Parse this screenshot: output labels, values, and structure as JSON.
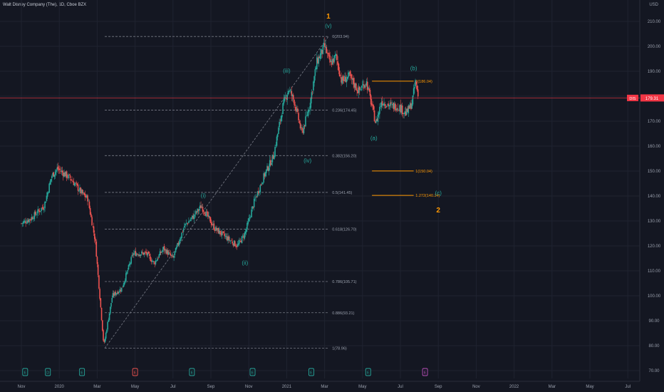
{
  "header": {
    "title": "Walt Disney Company (The), 1D, Cboe BZX",
    "currency": "USD"
  },
  "price_tag": {
    "symbol": "DIS",
    "value": "179.31"
  },
  "chart_data": {
    "type": "candlestick",
    "ylim": [
      70,
      210
    ],
    "y_ticks": [
      "70.00",
      "80.00",
      "90.00",
      "100.00",
      "110.00",
      "120.00",
      "130.00",
      "140.00",
      "150.00",
      "160.00",
      "170.00",
      "180.00",
      "190.00",
      "200.00",
      "210.00"
    ],
    "x_ticks": [
      "Nov",
      "2020",
      "Mar",
      "May",
      "Jul",
      "Sep",
      "Nov",
      "2021",
      "Mar",
      "May",
      "Jul",
      "Sep",
      "Nov",
      "2022",
      "Mar",
      "May",
      "Jul"
    ],
    "x_tick_months": [
      0,
      2,
      4,
      6,
      8,
      10,
      12,
      14,
      16,
      18,
      20,
      22,
      24,
      26,
      28,
      30,
      32
    ],
    "current_price": 179.31,
    "price_anchors": [
      {
        "m": 0.0,
        "p": 129
      },
      {
        "m": 0.5,
        "p": 131
      },
      {
        "m": 1.2,
        "p": 136
      },
      {
        "m": 1.6,
        "p": 148
      },
      {
        "m": 1.9,
        "p": 151
      },
      {
        "m": 2.6,
        "p": 147
      },
      {
        "m": 3.2,
        "p": 141
      },
      {
        "m": 3.5,
        "p": 139
      },
      {
        "m": 3.9,
        "p": 122
      },
      {
        "m": 4.35,
        "p": 80
      },
      {
        "m": 4.8,
        "p": 100
      },
      {
        "m": 5.3,
        "p": 103
      },
      {
        "m": 5.9,
        "p": 117
      },
      {
        "m": 6.6,
        "p": 117
      },
      {
        "m": 7.0,
        "p": 113
      },
      {
        "m": 7.5,
        "p": 119
      },
      {
        "m": 8.0,
        "p": 115
      },
      {
        "m": 8.6,
        "p": 128
      },
      {
        "m": 9.1,
        "p": 132
      },
      {
        "m": 9.5,
        "p": 136
      },
      {
        "m": 10.2,
        "p": 127
      },
      {
        "m": 10.7,
        "p": 124
      },
      {
        "m": 11.4,
        "p": 120
      },
      {
        "m": 11.8,
        "p": 125
      },
      {
        "m": 12.3,
        "p": 138
      },
      {
        "m": 12.8,
        "p": 148
      },
      {
        "m": 13.3,
        "p": 156
      },
      {
        "m": 13.8,
        "p": 176
      },
      {
        "m": 14.1,
        "p": 183
      },
      {
        "m": 14.4,
        "p": 178
      },
      {
        "m": 14.8,
        "p": 165
      },
      {
        "m": 15.2,
        "p": 176
      },
      {
        "m": 15.6,
        "p": 194
      },
      {
        "m": 16.0,
        "p": 200
      },
      {
        "m": 16.3,
        "p": 193
      },
      {
        "m": 16.6,
        "p": 196
      },
      {
        "m": 16.9,
        "p": 186
      },
      {
        "m": 17.3,
        "p": 188
      },
      {
        "m": 17.8,
        "p": 182
      },
      {
        "m": 18.2,
        "p": 186
      },
      {
        "m": 18.5,
        "p": 176
      },
      {
        "m": 18.7,
        "p": 169
      },
      {
        "m": 19.0,
        "p": 178
      },
      {
        "m": 19.5,
        "p": 176
      },
      {
        "m": 19.9,
        "p": 176
      },
      {
        "m": 20.3,
        "p": 173
      },
      {
        "m": 20.6,
        "p": 177
      },
      {
        "m": 20.8,
        "p": 186
      },
      {
        "m": 20.95,
        "p": 179.3
      }
    ],
    "fib_levels": [
      {
        "label": "0(203.94)",
        "price": 203.94
      },
      {
        "label": "0.236(174.45)",
        "price": 174.45
      },
      {
        "label": "0.382(156.20)",
        "price": 156.2
      },
      {
        "label": "0.5(141.45)",
        "price": 141.45
      },
      {
        "label": "0.618(126.70)",
        "price": 126.7
      },
      {
        "label": "0.786(105.71)",
        "price": 105.71
      },
      {
        "label": "0.886(93.21)",
        "price": 93.21
      },
      {
        "label": "1(78.96)",
        "price": 78.96
      }
    ],
    "projection_levels": [
      {
        "label": "0(186.04)",
        "price": 186.04
      },
      {
        "label": "1(150.04)",
        "price": 150.04
      },
      {
        "label": "1.272(140.24)",
        "price": 140.24
      }
    ],
    "wave_labels": [
      {
        "text": "(i)",
        "m": 9.6,
        "price": 139.5,
        "color": "teal"
      },
      {
        "text": "(ii)",
        "m": 11.8,
        "price": 112.5,
        "color": "teal"
      },
      {
        "text": "(iii)",
        "m": 14.0,
        "price": 189.5,
        "color": "teal"
      },
      {
        "text": "(iv)",
        "m": 15.1,
        "price": 153.5,
        "color": "teal"
      },
      {
        "text": "(v)",
        "m": 16.2,
        "price": 207.5,
        "color": "teal"
      },
      {
        "text": "1",
        "m": 16.2,
        "price": 211.2,
        "color": "orange"
      },
      {
        "text": "(a)",
        "m": 18.6,
        "price": 162.5,
        "color": "teal"
      },
      {
        "text": "(b)",
        "m": 20.7,
        "price": 190.5,
        "color": "teal"
      },
      {
        "text": "(c)",
        "m": 22.0,
        "price": 140.5,
        "color": "teal"
      },
      {
        "text": "2",
        "m": 22.0,
        "price": 133.5,
        "color": "orange"
      }
    ],
    "event_markers": [
      {
        "m": 0.2,
        "letter": "E",
        "color": "#26a69a"
      },
      {
        "m": 1.4,
        "letter": "D",
        "color": "#26a69a"
      },
      {
        "m": 3.2,
        "letter": "E",
        "color": "#26a69a"
      },
      {
        "m": 6.0,
        "letter": "E",
        "color": "#ef5350"
      },
      {
        "m": 9.0,
        "letter": "E",
        "color": "#26a69a"
      },
      {
        "m": 12.2,
        "letter": "E",
        "color": "#26a69a"
      },
      {
        "m": 15.3,
        "letter": "E",
        "color": "#26a69a"
      },
      {
        "m": 18.3,
        "letter": "E",
        "color": "#26a69a"
      },
      {
        "m": 21.3,
        "letter": "E",
        "color": "#b84fb8"
      }
    ]
  },
  "colors": {
    "background": "#141722",
    "grid": "#1f2330",
    "up": "#26a69a",
    "down": "#ef5350",
    "fib_line": "#787b86",
    "projection": "#ff9800",
    "wave_teal": "#26a69a",
    "wave_orange": "#ff9800",
    "axis_text": "#9aa0ad",
    "price_line": "#f23645"
  }
}
